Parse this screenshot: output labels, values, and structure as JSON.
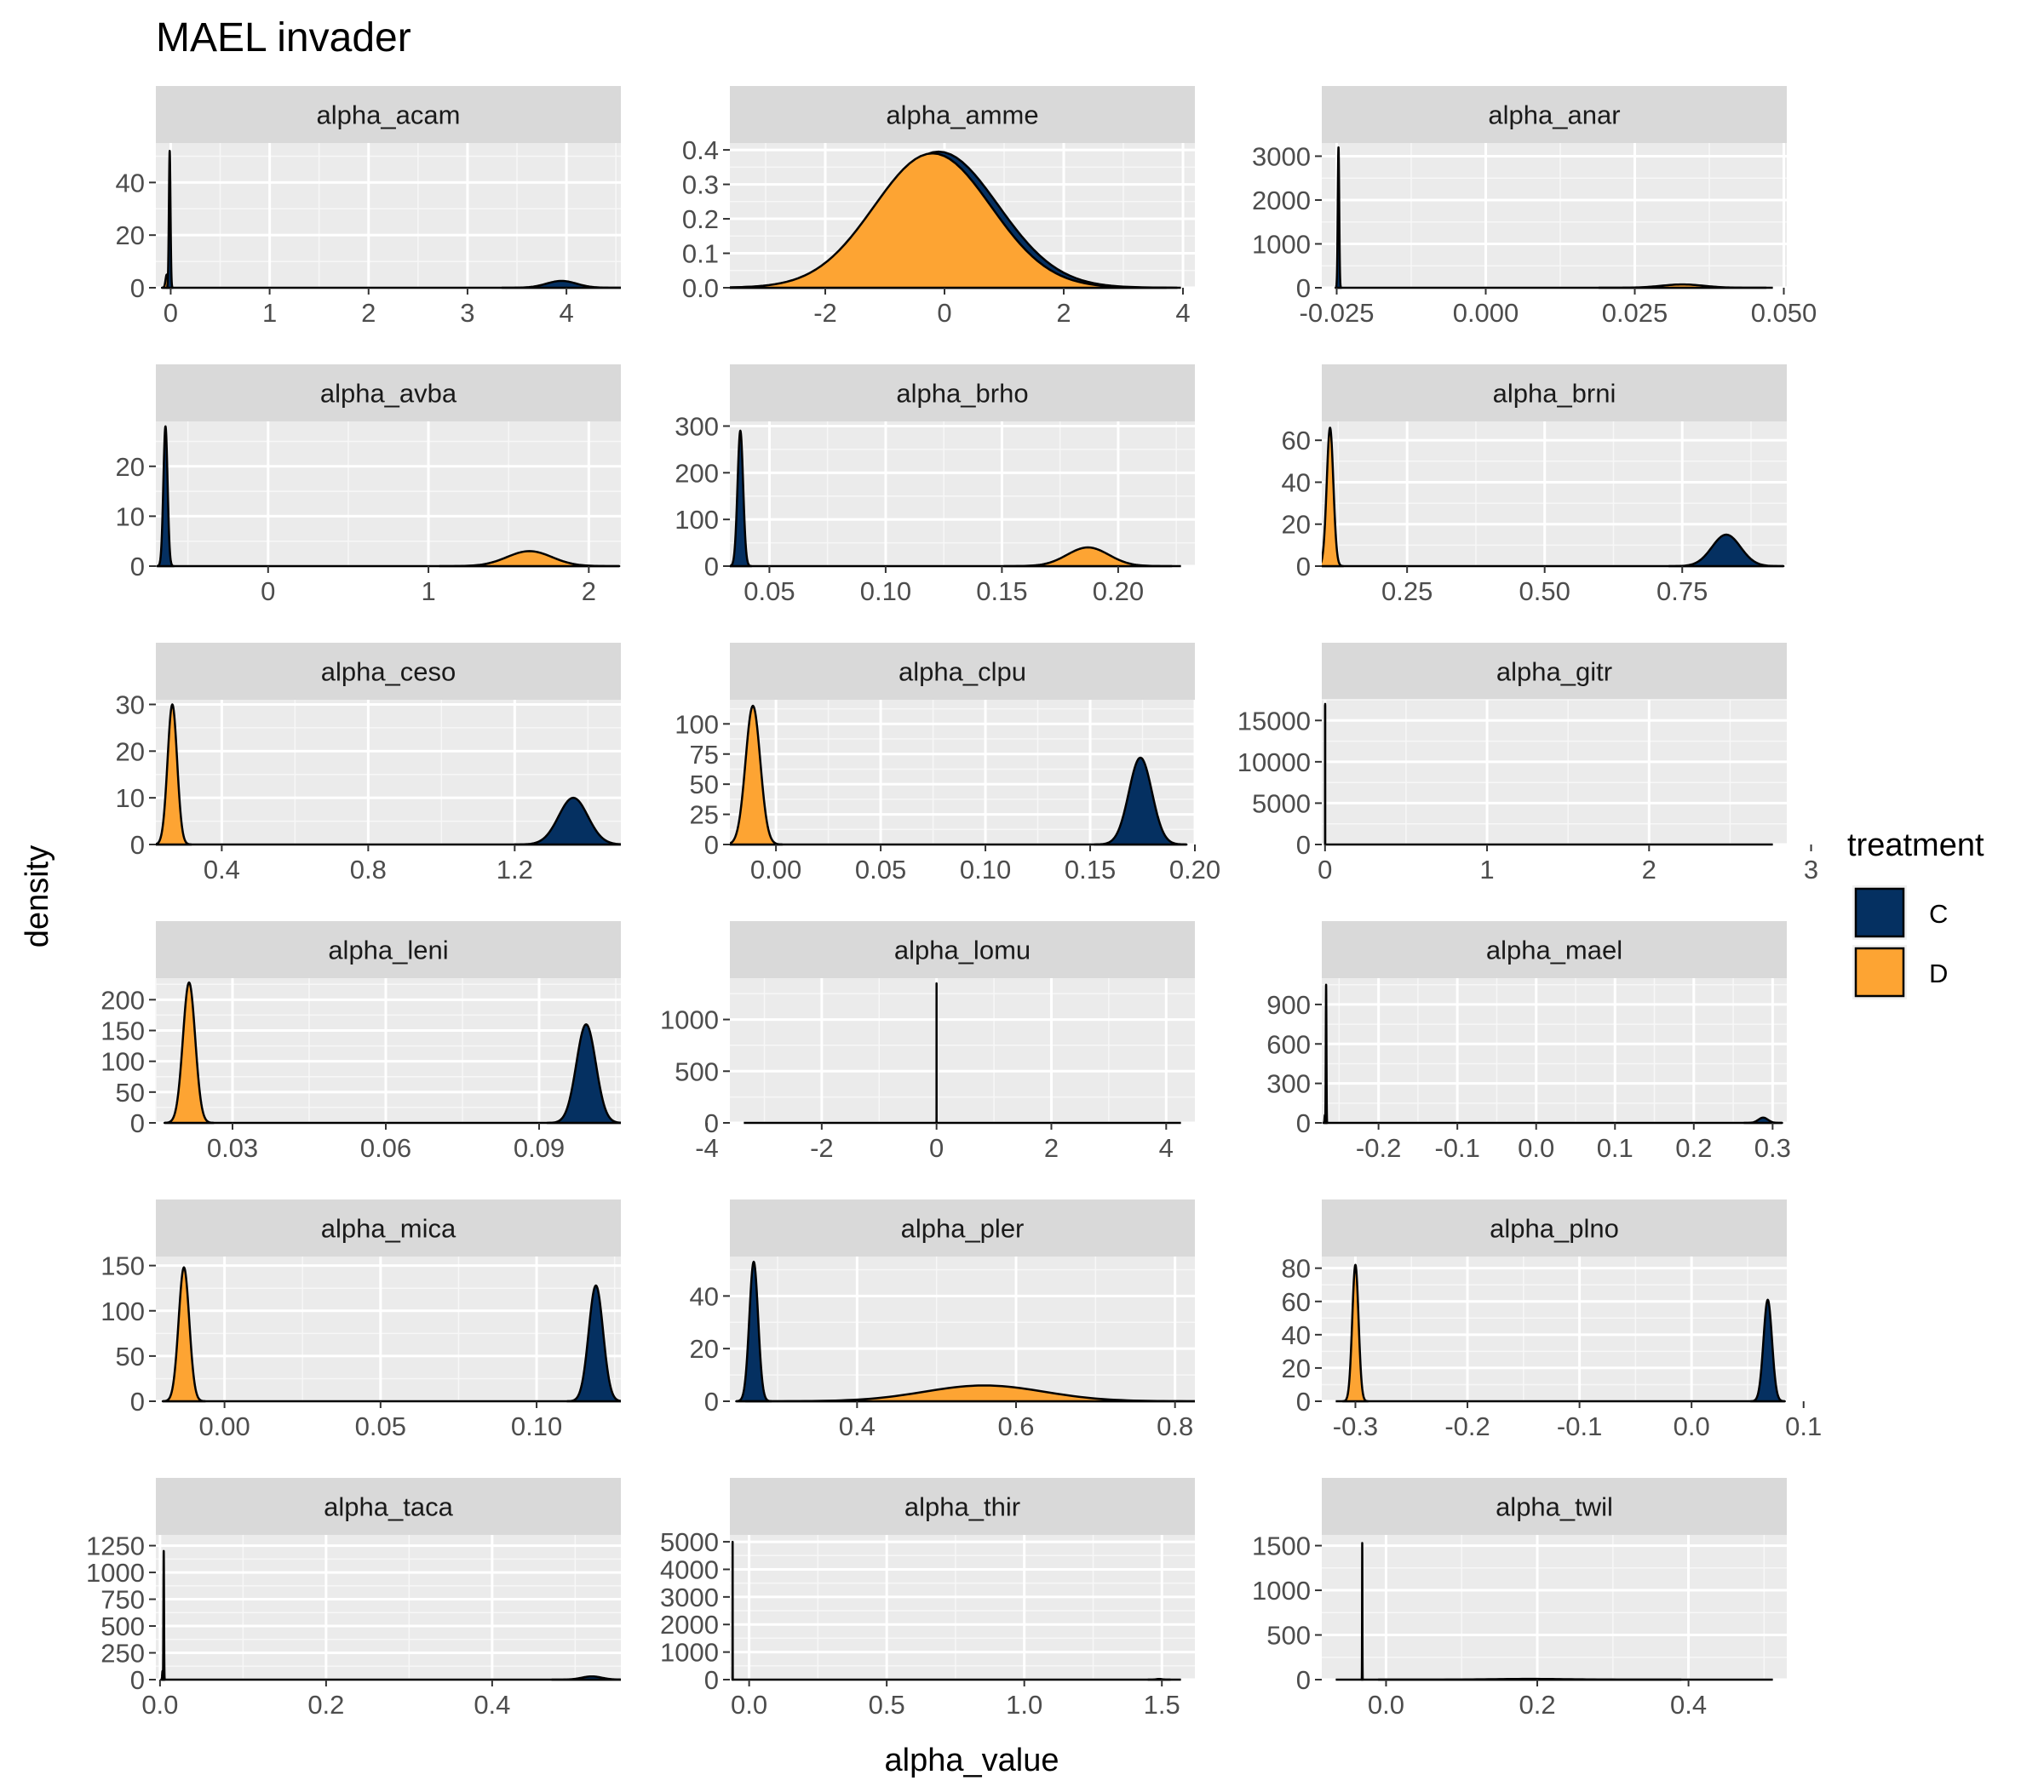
{
  "chart_data": {
    "type": "area",
    "title": "MAEL invader",
    "xlabel": "alpha_value",
    "ylabel": "density",
    "grid": true,
    "legend": {
      "title": "treatment",
      "position": "right",
      "entries": [
        {
          "label": "C",
          "color": "#053061"
        },
        {
          "label": "D",
          "color": "#FDA433"
        }
      ]
    },
    "colors": {
      "C": "#053061",
      "D": "#FDA433",
      "panel_bg": "#EBEBEB",
      "strip_bg": "#D9D9D9",
      "outline": "#000000"
    },
    "panels": [
      {
        "name": "alpha_acam",
        "xlim": [
          -0.15,
          4.55
        ],
        "xticks": [
          0,
          1,
          2,
          3,
          4
        ],
        "xtick_labels": [
          "0",
          "1",
          "2",
          "3",
          "4"
        ],
        "ylim": [
          0,
          55
        ],
        "yticks": [
          0,
          20,
          40
        ],
        "ytick_labels": [
          "0",
          "20",
          "40"
        ],
        "peaks": [
          {
            "series": "D",
            "mean": -0.04,
            "sd": 0.012,
            "peak": 5
          },
          {
            "series": "C",
            "mean": -0.01,
            "sd": 0.008,
            "peak": 52
          },
          {
            "series": "C",
            "mean": 3.95,
            "sd": 0.15,
            "peak": 2.6
          }
        ]
      },
      {
        "name": "alpha_amme",
        "xlim": [
          -3.6,
          4.2
        ],
        "xticks": [
          -2,
          0,
          2,
          4
        ],
        "xtick_labels": [
          "-2",
          "0",
          "2",
          "4"
        ],
        "ylim": [
          0,
          0.42
        ],
        "yticks": [
          0,
          0.1,
          0.2,
          0.3,
          0.4
        ],
        "ytick_labels": [
          "0.0",
          "0.1",
          "0.2",
          "0.3",
          "0.4"
        ],
        "peaks": [
          {
            "series": "C",
            "mean": -0.1,
            "sd": 1.0,
            "peak": 0.395
          },
          {
            "series": "D",
            "mean": -0.2,
            "sd": 0.98,
            "peak": 0.39
          }
        ]
      },
      {
        "name": "alpha_anar",
        "xlim": [
          -0.0275,
          0.0505
        ],
        "xticks": [
          -0.025,
          0,
          0.025,
          0.05
        ],
        "xtick_labels": [
          "-0.025",
          "0.000",
          "0.025",
          "0.050"
        ],
        "ylim": [
          0,
          3300
        ],
        "yticks": [
          0,
          1000,
          2000,
          3000
        ],
        "ytick_labels": [
          "0",
          "1000",
          "2000",
          "3000"
        ],
        "peaks": [
          {
            "series": "C",
            "mean": -0.0247,
            "sd": 0.00012,
            "peak": 3200
          },
          {
            "series": "D",
            "mean": 0.033,
            "sd": 0.0035,
            "peak": 75
          }
        ]
      },
      {
        "name": "alpha_avba",
        "xlim": [
          -0.7,
          2.2
        ],
        "xticks": [
          0,
          1,
          2
        ],
        "xtick_labels": [
          "0",
          "1",
          "2"
        ],
        "ylim": [
          0,
          29
        ],
        "yticks": [
          0,
          10,
          20
        ],
        "ytick_labels": [
          "0",
          "10",
          "20"
        ],
        "peaks": [
          {
            "series": "C",
            "mean": -0.64,
            "sd": 0.013,
            "peak": 28
          },
          {
            "series": "D",
            "mean": 1.63,
            "sd": 0.14,
            "peak": 3
          }
        ]
      },
      {
        "name": "alpha_brho",
        "xlim": [
          0.033,
          0.233
        ],
        "xticks": [
          0.05,
          0.1,
          0.15,
          0.2
        ],
        "xtick_labels": [
          "0.05",
          "0.10",
          "0.15",
          "0.20"
        ],
        "ylim": [
          0,
          310
        ],
        "yticks": [
          0,
          100,
          200,
          300
        ],
        "ytick_labels": [
          "0",
          "100",
          "200",
          "300"
        ],
        "peaks": [
          {
            "series": "C",
            "mean": 0.0375,
            "sd": 0.0012,
            "peak": 290
          },
          {
            "series": "D",
            "mean": 0.187,
            "sd": 0.009,
            "peak": 40
          }
        ]
      },
      {
        "name": "alpha_brni",
        "xlim": [
          0.095,
          0.94
        ],
        "xticks": [
          0.25,
          0.5,
          0.75
        ],
        "xtick_labels": [
          "0.25",
          "0.50",
          "0.75"
        ],
        "ylim": [
          0,
          69
        ],
        "yticks": [
          0,
          20,
          40,
          60
        ],
        "ytick_labels": [
          "0",
          "20",
          "40",
          "60"
        ],
        "peaks": [
          {
            "series": "D",
            "mean": 0.11,
            "sd": 0.006,
            "peak": 66
          },
          {
            "series": "C",
            "mean": 0.83,
            "sd": 0.026,
            "peak": 15
          }
        ]
      },
      {
        "name": "alpha_ceso",
        "xlim": [
          0.22,
          1.49
        ],
        "xticks": [
          0.4,
          0.8,
          1.2
        ],
        "xtick_labels": [
          "0.4",
          "0.8",
          "1.2"
        ],
        "ylim": [
          0,
          31
        ],
        "yticks": [
          0,
          10,
          20,
          30
        ],
        "ytick_labels": [
          "0",
          "10",
          "20",
          "30"
        ],
        "peaks": [
          {
            "series": "D",
            "mean": 0.265,
            "sd": 0.013,
            "peak": 30
          },
          {
            "series": "C",
            "mean": 1.36,
            "sd": 0.04,
            "peak": 10
          }
        ]
      },
      {
        "name": "alpha_clpu",
        "xlim": [
          -0.022,
          0.2
        ],
        "xticks": [
          0,
          0.05,
          0.1,
          0.15,
          0.2
        ],
        "xtick_labels": [
          "0.00",
          "0.05",
          "0.10",
          "0.15",
          "0.20"
        ],
        "ylim": [
          0,
          120
        ],
        "yticks": [
          0,
          25,
          50,
          75,
          100
        ],
        "ytick_labels": [
          "0",
          "25",
          "50",
          "75",
          "100"
        ],
        "peaks": [
          {
            "series": "D",
            "mean": -0.011,
            "sd": 0.0035,
            "peak": 115
          },
          {
            "series": "C",
            "mean": 0.174,
            "sd": 0.0055,
            "peak": 72
          }
        ]
      },
      {
        "name": "alpha_gitr",
        "xlim": [
          -0.02,
          2.85
        ],
        "xticks": [
          0,
          1,
          2,
          3
        ],
        "xtick_labels": [
          "0",
          "1",
          "2",
          "3"
        ],
        "ylim": [
          0,
          17500
        ],
        "yticks": [
          0,
          5000,
          10000,
          15000
        ],
        "ytick_labels": [
          "0",
          "5000",
          "10000",
          "15000"
        ],
        "peaks": [
          {
            "series": "D",
            "mean": 0.0005,
            "sd": 2e-05,
            "peak": 16800
          },
          {
            "series": "C",
            "mean": 0.0008,
            "sd": 2e-05,
            "peak": 17000
          }
        ]
      },
      {
        "name": "alpha_leni",
        "xlim": [
          0.015,
          0.106
        ],
        "xticks": [
          0.03,
          0.06,
          0.09
        ],
        "xtick_labels": [
          "0.03",
          "0.06",
          "0.09"
        ],
        "ylim": [
          0,
          235
        ],
        "yticks": [
          0,
          50,
          100,
          150,
          200
        ],
        "ytick_labels": [
          "0",
          "50",
          "100",
          "150",
          "200"
        ],
        "peaks": [
          {
            "series": "D",
            "mean": 0.0215,
            "sd": 0.0012,
            "peak": 228
          },
          {
            "series": "C",
            "mean": 0.0992,
            "sd": 0.0019,
            "peak": 160
          }
        ]
      },
      {
        "name": "alpha_lomu",
        "xlim": [
          -3.6,
          4.5
        ],
        "xticks": [
          -4,
          -2,
          0,
          2,
          4
        ],
        "xtick_labels": [
          "-4",
          "-2",
          "0",
          "2",
          "4"
        ],
        "ylim": [
          0,
          1400
        ],
        "yticks": [
          0,
          500,
          1000
        ],
        "ytick_labels": [
          "0",
          "500",
          "1000"
        ],
        "peaks": [
          {
            "series": "C",
            "mean": 0.0,
            "sd": 0.0003,
            "peak": 1350
          }
        ]
      },
      {
        "name": "alpha_mael",
        "xlim": [
          -0.272,
          0.318
        ],
        "xticks": [
          -0.2,
          -0.1,
          0,
          0.1,
          0.2,
          0.3
        ],
        "xtick_labels": [
          "-0.2",
          "-0.1",
          "0.0",
          "0.1",
          "0.2",
          "0.3"
        ],
        "ylim": [
          0,
          1100
        ],
        "yticks": [
          0,
          300,
          600,
          900
        ],
        "ytick_labels": [
          "0",
          "300",
          "600",
          "900"
        ],
        "peaks": [
          {
            "series": "D",
            "mean": -0.268,
            "sd": 0.0005,
            "peak": 60
          },
          {
            "series": "C",
            "mean": -0.2665,
            "sd": 0.0004,
            "peak": 1050
          },
          {
            "series": "C",
            "mean": 0.288,
            "sd": 0.006,
            "peak": 40
          }
        ]
      },
      {
        "name": "alpha_mica",
        "xlim": [
          -0.022,
          0.127
        ],
        "xticks": [
          0,
          0.05,
          0.1
        ],
        "xtick_labels": [
          "0.00",
          "0.05",
          "0.10"
        ],
        "ylim": [
          0,
          160
        ],
        "yticks": [
          0,
          50,
          100,
          150
        ],
        "ytick_labels": [
          "0",
          "50",
          "100",
          "150"
        ],
        "peaks": [
          {
            "series": "D",
            "mean": -0.013,
            "sd": 0.0017,
            "peak": 148
          },
          {
            "series": "C",
            "mean": 0.119,
            "sd": 0.0023,
            "peak": 128
          }
        ]
      },
      {
        "name": "alpha_pler",
        "xlim": [
          0.24,
          0.825
        ],
        "xticks": [
          0.4,
          0.6,
          0.8
        ],
        "xtick_labels": [
          "0.4",
          "0.6",
          "0.8"
        ],
        "ylim": [
          0,
          55
        ],
        "yticks": [
          0,
          20,
          40
        ],
        "ytick_labels": [
          "0",
          "20",
          "40"
        ],
        "peaks": [
          {
            "series": "C",
            "mean": 0.27,
            "sd": 0.0055,
            "peak": 53
          },
          {
            "series": "D",
            "mean": 0.56,
            "sd": 0.075,
            "peak": 6
          }
        ]
      },
      {
        "name": "alpha_plno",
        "xlim": [
          -0.33,
          0.085
        ],
        "xticks": [
          -0.3,
          -0.2,
          -0.1,
          0,
          0.1
        ],
        "xtick_labels": [
          "-0.3",
          "-0.2",
          "-0.1",
          "0.0",
          "0.1"
        ],
        "ylim": [
          0,
          87
        ],
        "yticks": [
          0,
          20,
          40,
          60,
          80
        ],
        "ytick_labels": [
          "0",
          "20",
          "40",
          "60",
          "80"
        ],
        "peaks": [
          {
            "series": "D",
            "mean": -0.3,
            "sd": 0.0028,
            "peak": 82
          },
          {
            "series": "C",
            "mean": 0.068,
            "sd": 0.0038,
            "peak": 61
          }
        ]
      },
      {
        "name": "alpha_taca",
        "xlim": [
          -0.005,
          0.555
        ],
        "xticks": [
          0,
          0.2,
          0.4
        ],
        "xtick_labels": [
          "0.0",
          "0.2",
          "0.4"
        ],
        "ylim": [
          0,
          1350
        ],
        "yticks": [
          0,
          250,
          500,
          750,
          1000,
          1250
        ],
        "ytick_labels": [
          "0",
          "250",
          "500",
          "750",
          "1000",
          "1250"
        ],
        "peaks": [
          {
            "series": "D",
            "mean": 0.003,
            "sd": 0.0004,
            "peak": 80
          },
          {
            "series": "C",
            "mean": 0.0045,
            "sd": 0.00035,
            "peak": 1200
          },
          {
            "series": "C",
            "mean": 0.52,
            "sd": 0.012,
            "peak": 30
          }
        ]
      },
      {
        "name": "alpha_thir",
        "xlim": [
          -0.07,
          1.62
        ],
        "xticks": [
          0,
          0.5,
          1,
          1.5
        ],
        "xtick_labels": [
          "0.0",
          "0.5",
          "1.0",
          "1.5"
        ],
        "ylim": [
          0,
          5250
        ],
        "yticks": [
          0,
          1000,
          2000,
          3000,
          4000,
          5000
        ],
        "ytick_labels": [
          "0",
          "1000",
          "2000",
          "3000",
          "4000",
          "5000"
        ],
        "peaks": [
          {
            "series": "C",
            "mean": -0.06,
            "sd": 0.0002,
            "peak": 5000
          },
          {
            "series": "C",
            "mean": 1.49,
            "sd": 0.01,
            "peak": 25
          }
        ]
      },
      {
        "name": "alpha_twil",
        "xlim": [
          -0.085,
          0.53
        ],
        "xticks": [
          0,
          0.2,
          0.4
        ],
        "xtick_labels": [
          "0.0",
          "0.2",
          "0.4"
        ],
        "ylim": [
          0,
          1620
        ],
        "yticks": [
          0,
          500,
          1000,
          1500
        ],
        "ytick_labels": [
          "0",
          "500",
          "1000",
          "1500"
        ],
        "peaks": [
          {
            "series": "C",
            "mean": -0.0315,
            "sd": 0.0002,
            "peak": 1530
          },
          {
            "series": "D",
            "mean": 0.19,
            "sd": 0.05,
            "peak": 8
          }
        ]
      }
    ]
  }
}
